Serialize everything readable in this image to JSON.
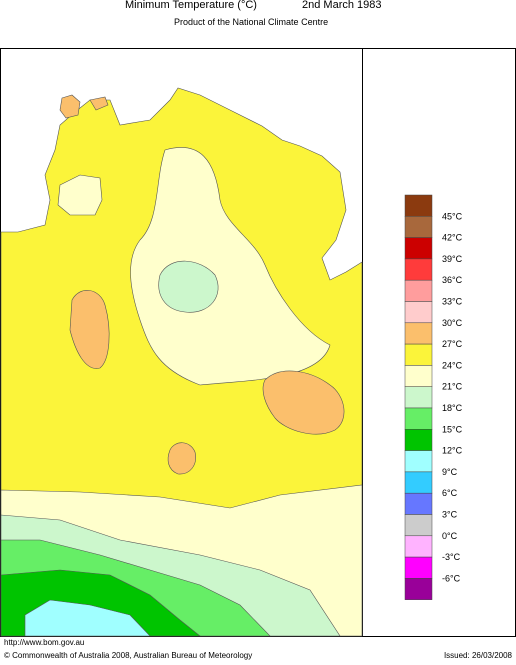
{
  "header": {
    "title": "Minimum Temperature (°C)",
    "date": "2nd March 1983",
    "subtitle": "Product of the National Climate Centre"
  },
  "legend": {
    "colors": [
      "#8b3a0f",
      "#a8683c",
      "#cc0000",
      "#ff3b3b",
      "#ff9d9d",
      "#ffcccc",
      "#fbbf6c",
      "#fbf43a",
      "#ffffcc",
      "#ccf7cc",
      "#66ee66",
      "#00c400",
      "#a0ffff",
      "#33ccff",
      "#6677ff",
      "#cccccc",
      "#ffb3ff",
      "#ff00ff",
      "#990099"
    ],
    "labels": [
      "45°C",
      "42°C",
      "39°C",
      "36°C",
      "33°C",
      "30°C",
      "27°C",
      "24°C",
      "21°C",
      "18°C",
      "15°C",
      "12°C",
      "9°C",
      "6°C",
      "3°C",
      "0°C",
      "-3°C",
      "-6°C"
    ]
  },
  "footer": {
    "url": "http://www.bom.gov.au",
    "copyright": "© Commonwealth of Australia 2008, Australian Bureau of Meteorology",
    "issued": "Issued: 26/03/2008"
  }
}
